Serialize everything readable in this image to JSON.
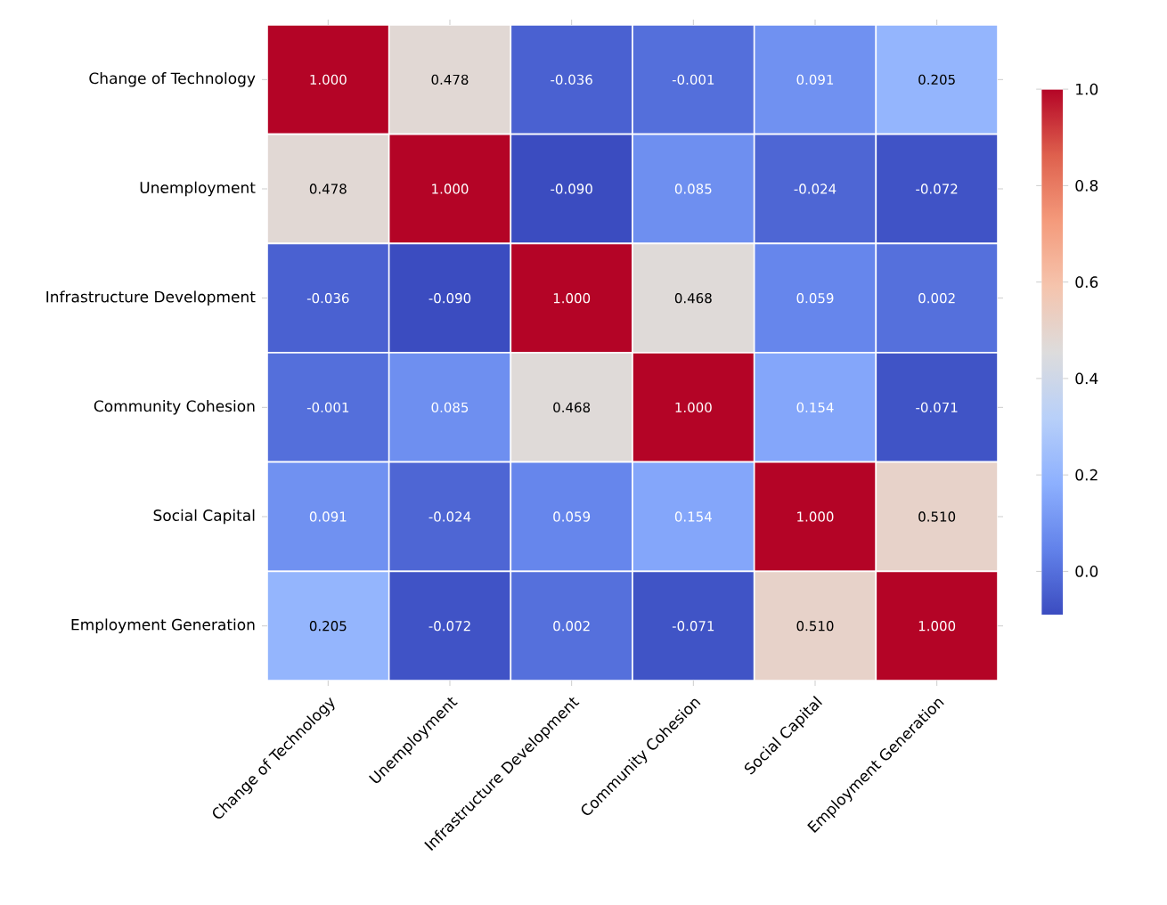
{
  "chart_data": {
    "type": "heatmap",
    "categories": [
      "Change of Technology",
      "Unemployment",
      "Infrastructure Development",
      "Community Cohesion",
      "Social Capital",
      "Employment Generation"
    ],
    "y_categories": [
      "Change of Technology",
      "Unemployment",
      "Infrastructure Development",
      "Community Cohesion",
      "Social Capital",
      "Employment Generation"
    ],
    "cells": [
      [
        1.0,
        0.478,
        -0.036,
        -0.001,
        0.091,
        0.205
      ],
      [
        0.478,
        1.0,
        -0.09,
        0.085,
        -0.024,
        -0.072
      ],
      [
        -0.036,
        -0.09,
        1.0,
        0.468,
        0.059,
        0.002
      ],
      [
        -0.001,
        0.085,
        0.468,
        1.0,
        0.154,
        -0.071
      ],
      [
        0.091,
        -0.024,
        0.059,
        0.154,
        1.0,
        0.51
      ],
      [
        0.205,
        -0.072,
        0.002,
        -0.071,
        0.51,
        1.0
      ]
    ],
    "cell_labels": [
      [
        "1.000",
        "0.478",
        "-0.036",
        "-0.001",
        "0.091",
        "0.205"
      ],
      [
        "0.478",
        "1.000",
        "-0.090",
        "0.085",
        "-0.024",
        "-0.072"
      ],
      [
        "-0.036",
        "-0.090",
        "1.000",
        "0.468",
        "0.059",
        "0.002"
      ],
      [
        "-0.001",
        "0.085",
        "0.468",
        "1.000",
        "0.154",
        "-0.071"
      ],
      [
        "0.091",
        "-0.024",
        "0.059",
        "0.154",
        "1.000",
        "0.510"
      ],
      [
        "0.205",
        "-0.072",
        "0.002",
        "-0.071",
        "0.510",
        "1.000"
      ]
    ],
    "clim": [
      -0.09,
      1.0
    ],
    "cticks": [
      {
        "value": 0,
        "label": "0.0"
      },
      {
        "value": 0.2,
        "label": "0.2"
      },
      {
        "value": 0.4,
        "label": "0.4"
      },
      {
        "value": 0.6,
        "label": "0.6"
      },
      {
        "value": 0.8,
        "label": "0.8"
      },
      {
        "value": 1.0,
        "label": "1.0"
      }
    ]
  }
}
